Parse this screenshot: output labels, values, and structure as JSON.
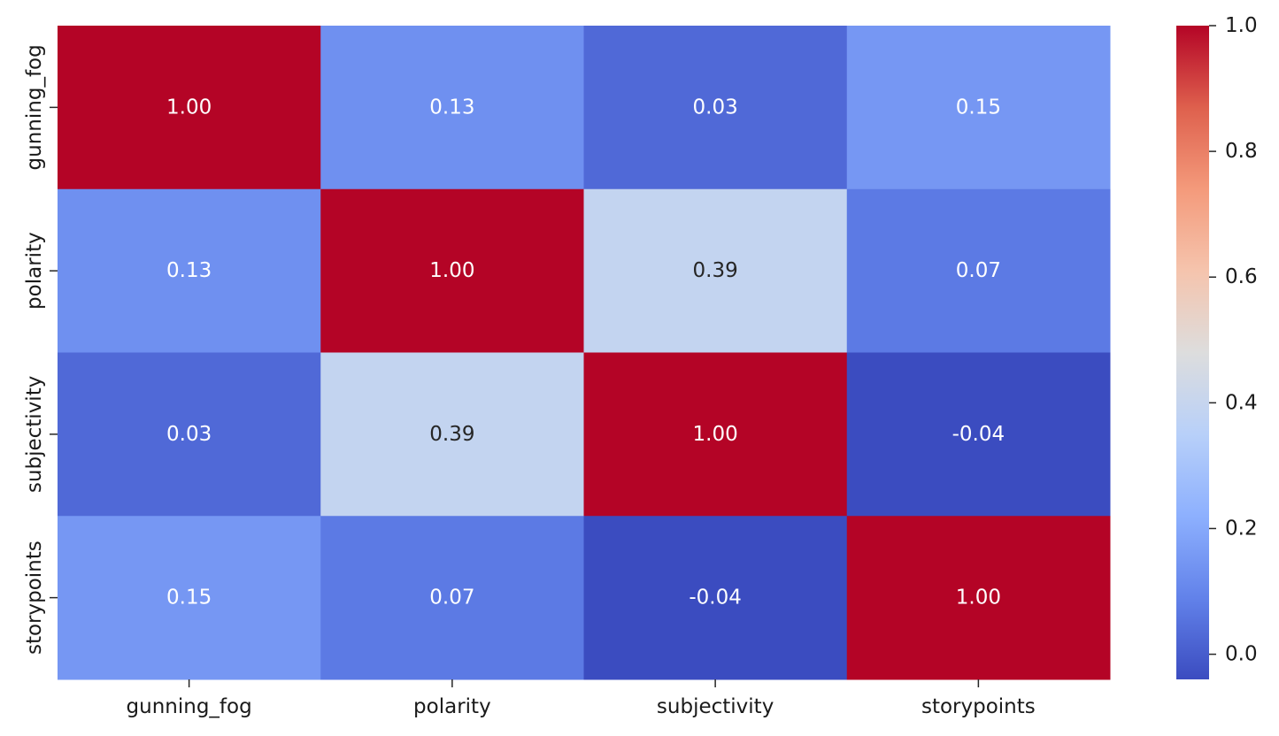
{
  "chart_data": {
    "type": "heatmap",
    "title": "",
    "xlabel": "",
    "ylabel": "",
    "x_categories": [
      "gunning_fog",
      "polarity",
      "subjectivity",
      "storypoints"
    ],
    "y_categories": [
      "gunning_fog",
      "polarity",
      "subjectivity",
      "storypoints"
    ],
    "values": [
      [
        1.0,
        0.13,
        0.03,
        0.15
      ],
      [
        0.13,
        1.0,
        0.39,
        0.07
      ],
      [
        0.03,
        0.39,
        1.0,
        -0.04
      ],
      [
        0.15,
        0.07,
        -0.04,
        1.0
      ]
    ],
    "annotation_format": "0.00",
    "colormap": "coolwarm",
    "value_range": [
      -0.04,
      1.0
    ],
    "colorbar": {
      "ticks": [
        "0.0",
        "0.2",
        "0.4",
        "0.6",
        "0.8",
        "1.0"
      ],
      "tick_values": [
        0.0,
        0.2,
        0.4,
        0.6,
        0.8,
        1.0
      ],
      "position": "right"
    },
    "grid": false
  }
}
